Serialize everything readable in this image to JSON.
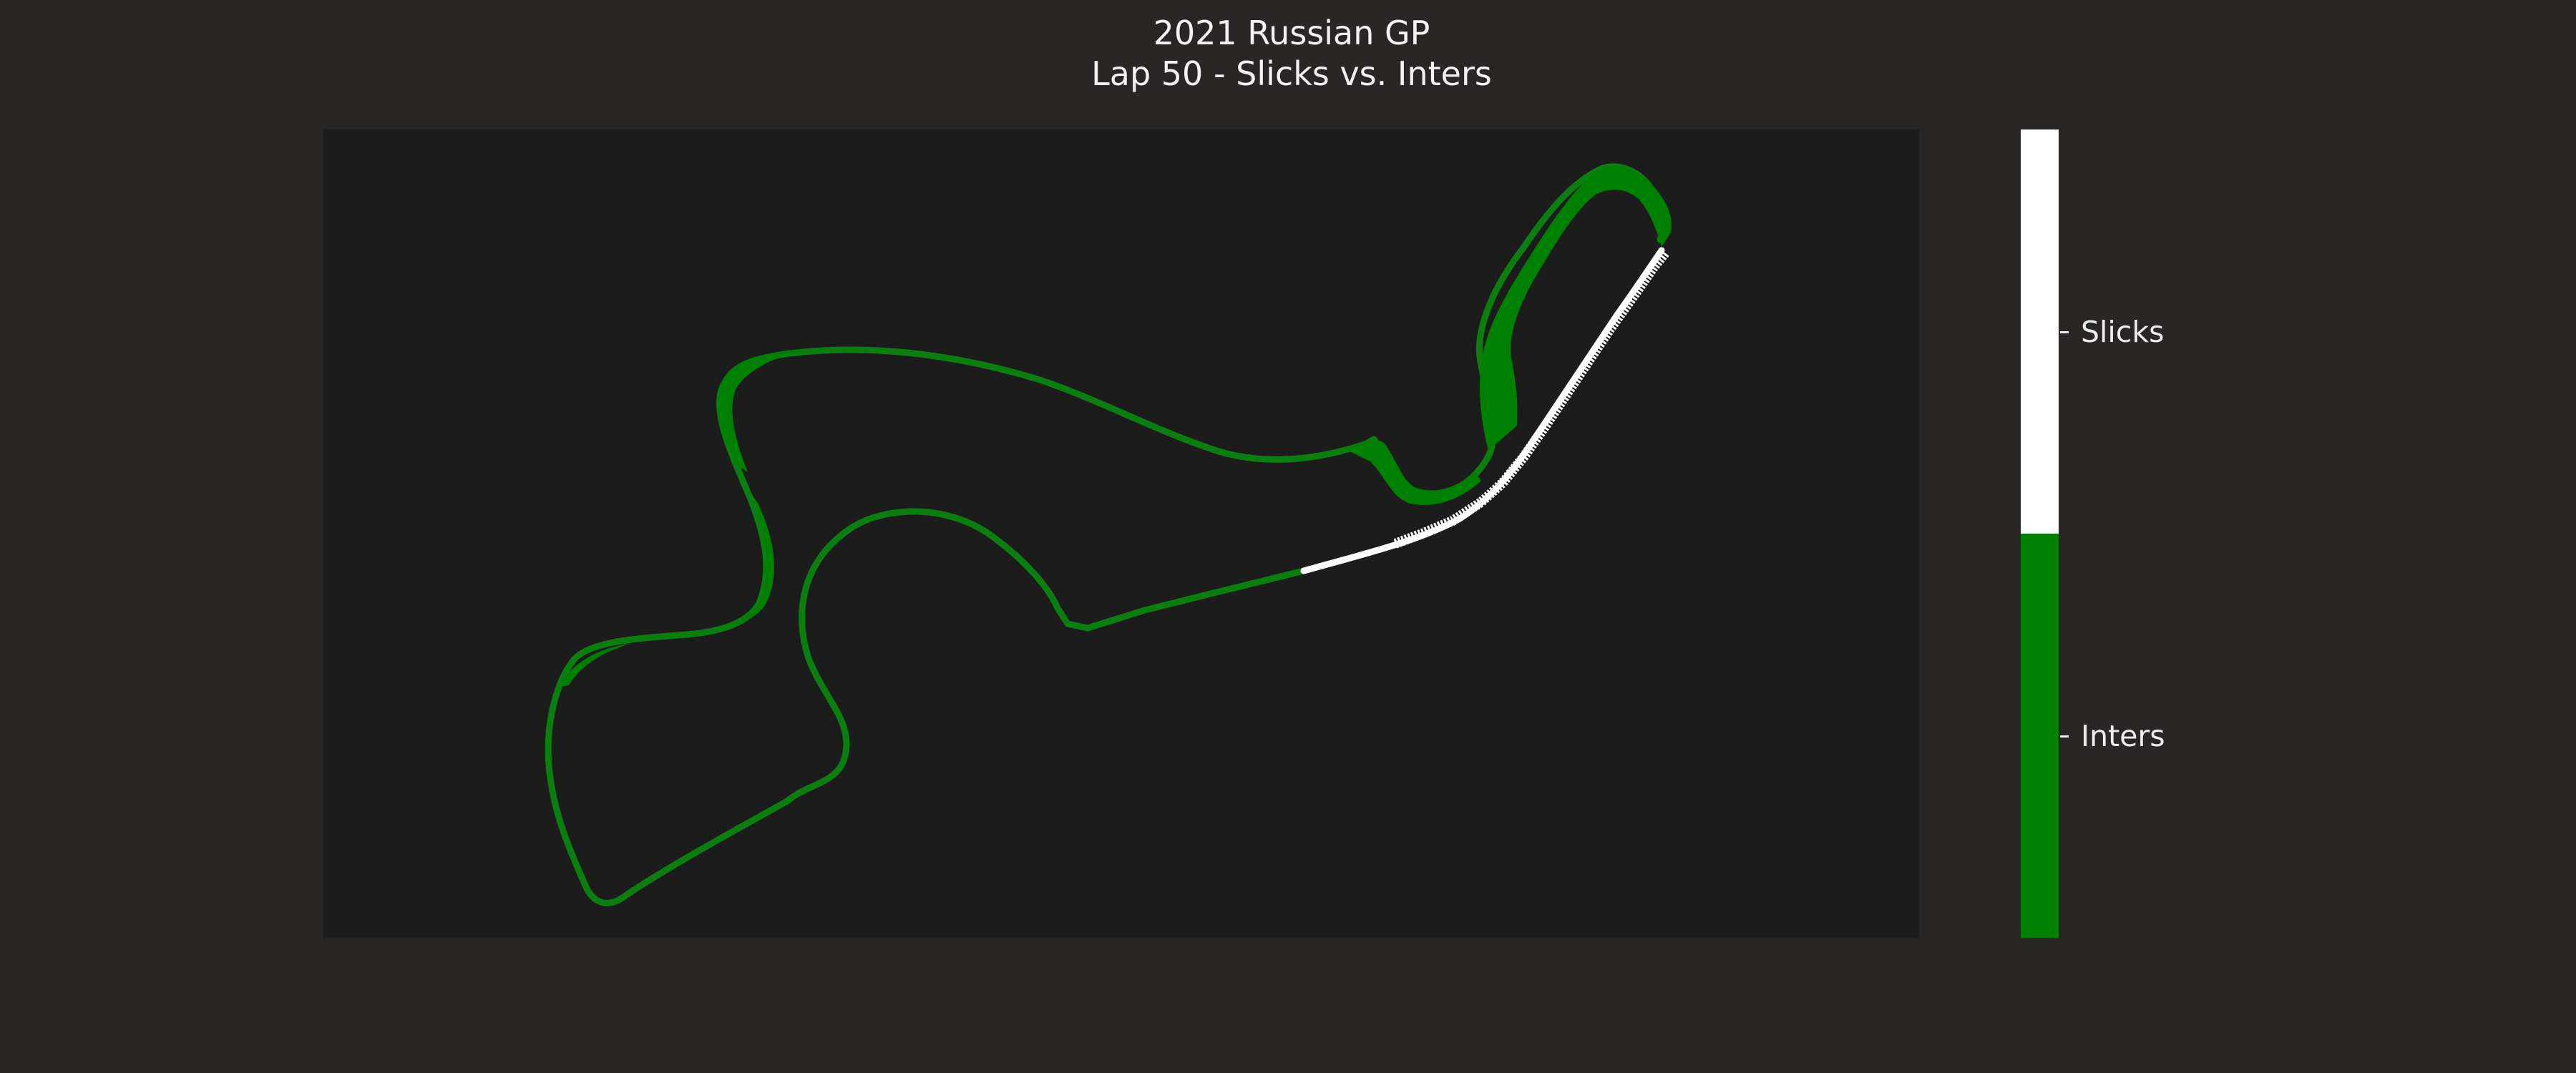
{
  "title": {
    "line1": "2021 Russian GP",
    "line2": "Lap 50 - Slicks vs. Inters"
  },
  "chart_data": {
    "type": "line",
    "colorbar": {
      "categories": [
        "Inters",
        "Slicks"
      ],
      "colors": [
        "#008000",
        "#ffffff"
      ]
    },
    "series": [
      {
        "name": "Inters",
        "color": "#008000"
      },
      {
        "name": "Slicks",
        "color": "#ffffff"
      }
    ],
    "grid": false
  },
  "colors": {
    "background": "#292625",
    "plot_background": "#1c1c1c",
    "inters": "#008000",
    "slicks": "#ffffff"
  }
}
